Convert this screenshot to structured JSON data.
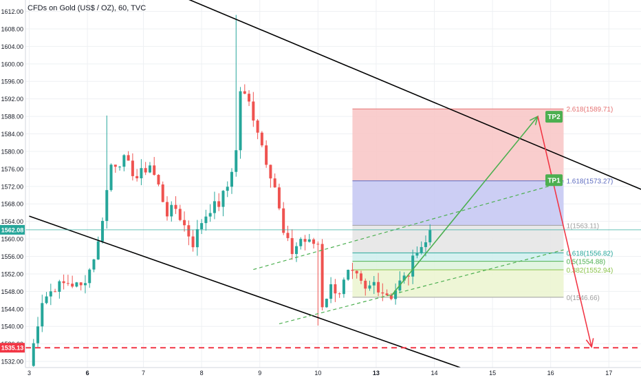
{
  "header": {
    "title": "CFDs on Gold (US$ / OZ), 60, TVC"
  },
  "colors": {
    "up": "#26a69a",
    "down": "#ef5350",
    "channel": "#000000",
    "trend": "#4caf50",
    "target_arrow": "#f23645",
    "support": "#f23645",
    "last_price": "#26a69a",
    "fib_top": "#f8c8c8",
    "fib_1618": "#c7c9f3",
    "fib_1": "#e6e6e6",
    "fib_0618": "#d0f0ee",
    "fib_05": "#dff4de",
    "fib_0382": "#ecf5d2",
    "tp_badge": "#4caf50"
  },
  "chart_data": {
    "type": "candlestick",
    "x_tick_labels": [
      "3",
      "6",
      "7",
      "8",
      "9",
      "10",
      "13",
      "14",
      "15",
      "16",
      "17"
    ],
    "y_ticks": [
      1532,
      1536,
      1540,
      1544,
      1548,
      1552,
      1556,
      1560,
      1564,
      1568,
      1572,
      1576,
      1580,
      1584,
      1588,
      1592,
      1596,
      1600,
      1604,
      1608,
      1612
    ],
    "y_tick_labels": [
      "1532.00",
      "1536.00",
      "1540.00",
      "1544.00",
      "1548.00",
      "1552.00",
      "1556.00",
      "1560.00",
      "1564.00",
      "1568.00",
      "1572.00",
      "1576.00",
      "1580.00",
      "1584.00",
      "1588.00",
      "1592.00",
      "1596.00",
      "1600.00",
      "1604.00",
      "1608.00",
      "1612.00"
    ],
    "ylim": [
      1530.6,
      1614.6
    ],
    "xlim": [
      0,
      144
    ],
    "last_price": {
      "value": 1562.08,
      "label": "1562.08"
    },
    "support_level": {
      "value": 1535.13,
      "label": "1535.13"
    },
    "anchors": [
      [
        0,
        1531
      ],
      [
        3,
        1546
      ],
      [
        6,
        1549
      ],
      [
        9,
        1550
      ],
      [
        12,
        1549
      ],
      [
        14,
        1553
      ],
      [
        16,
        1559
      ],
      [
        19,
        1577
      ],
      [
        22,
        1578
      ],
      [
        25,
        1574
      ],
      [
        28,
        1577
      ],
      [
        30,
        1572
      ],
      [
        32,
        1566
      ],
      [
        34,
        1567
      ],
      [
        36,
        1563
      ],
      [
        38,
        1559
      ],
      [
        40,
        1564
      ],
      [
        42,
        1567
      ],
      [
        44,
        1568
      ],
      [
        46,
        1572
      ],
      [
        48,
        1580
      ],
      [
        49,
        1594
      ],
      [
        51,
        1591
      ],
      [
        53,
        1585
      ],
      [
        55,
        1578
      ],
      [
        57,
        1572
      ],
      [
        59,
        1561
      ],
      [
        61,
        1557
      ],
      [
        63,
        1560
      ],
      [
        65,
        1559
      ],
      [
        67,
        1559
      ],
      [
        68,
        1545
      ],
      [
        70,
        1549
      ],
      [
        72,
        1548
      ],
      [
        74,
        1552
      ],
      [
        76,
        1551
      ],
      [
        78,
        1548
      ],
      [
        80,
        1550
      ],
      [
        82,
        1548
      ],
      [
        84,
        1547
      ],
      [
        86,
        1550
      ],
      [
        88,
        1552
      ],
      [
        90,
        1558
      ],
      [
        92,
        1559
      ],
      [
        93,
        1562
      ]
    ],
    "channel_upper": {
      "from": [
        31.5,
        1617
      ],
      "to": [
        144,
        1570.5
      ]
    },
    "channel_lower": {
      "from": [
        0,
        1565.2
      ],
      "to": [
        100,
        1530.6
      ]
    },
    "trend_upper": {
      "from": [
        52,
        1553
      ],
      "to": [
        124,
        1573
      ]
    },
    "trend_lower": {
      "from": [
        58,
        1540.6
      ],
      "to": [
        124,
        1557.5
      ]
    },
    "trend_arrow": {
      "from": [
        84,
        1547
      ],
      "to": [
        118,
        1588
      ]
    },
    "target_arrow": {
      "from": [
        118,
        1588
      ],
      "to": [
        130.5,
        1535.3
      ]
    },
    "fib_box": {
      "x_start": 75,
      "x_end": 124
    },
    "fib_levels": [
      {
        "value": 1589.71,
        "label": "2.618(1589.71)",
        "color": "#e57373"
      },
      {
        "value": 1573.27,
        "label": "1.618(1573.27)",
        "color": "#5c6bc0"
      },
      {
        "value": 1563.11,
        "label": "1(1563.11)",
        "color": "#9e9e9e"
      },
      {
        "value": 1556.82,
        "label": "0.618(1556.82)",
        "color": "#26a69a"
      },
      {
        "value": 1554.88,
        "label": "0.5(1554.88)",
        "color": "#4caf50"
      },
      {
        "value": 1552.94,
        "label": "0.382(1552.94)",
        "color": "#8bc34a"
      },
      {
        "value": 1546.66,
        "label": "0(1546.66)",
        "color": "#9e9e9e"
      }
    ],
    "targets": [
      {
        "label": "TP2",
        "value": 1588.0
      },
      {
        "label": "TP1",
        "value": 1573.5
      }
    ]
  }
}
